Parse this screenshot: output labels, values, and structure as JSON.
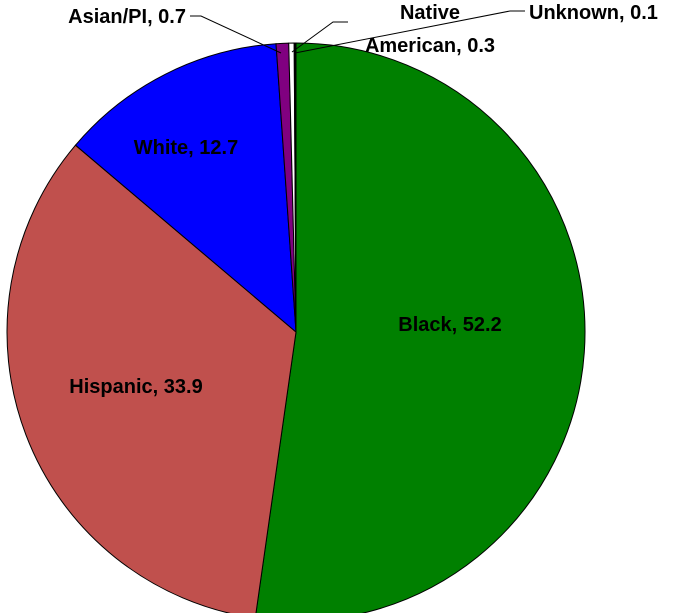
{
  "chart_data": {
    "type": "pie",
    "title": "",
    "slices": [
      {
        "name": "Black",
        "value": 52.2,
        "label": "Black, 52.2",
        "color": "#008000"
      },
      {
        "name": "Hispanic",
        "value": 33.9,
        "label": "Hispanic, 33.9",
        "color": "#c0504d"
      },
      {
        "name": "White",
        "value": 12.7,
        "label": "White, 12.7",
        "color": "#0000ff"
      },
      {
        "name": "Asian/PI",
        "value": 0.7,
        "label": "Asian/PI, 0.7",
        "color": "#800080"
      },
      {
        "name": "Native American",
        "value": 0.3,
        "label_line1": "Native",
        "label_line2": "American, 0.3",
        "color": "#ffffff"
      },
      {
        "name": "Unknown",
        "value": 0.1,
        "label": "Unknown, 0.1",
        "color": "#000000"
      }
    ],
    "start_angle": "12 o'clock",
    "direction": "clockwise",
    "legend": "none",
    "data_labels": "category and value"
  }
}
